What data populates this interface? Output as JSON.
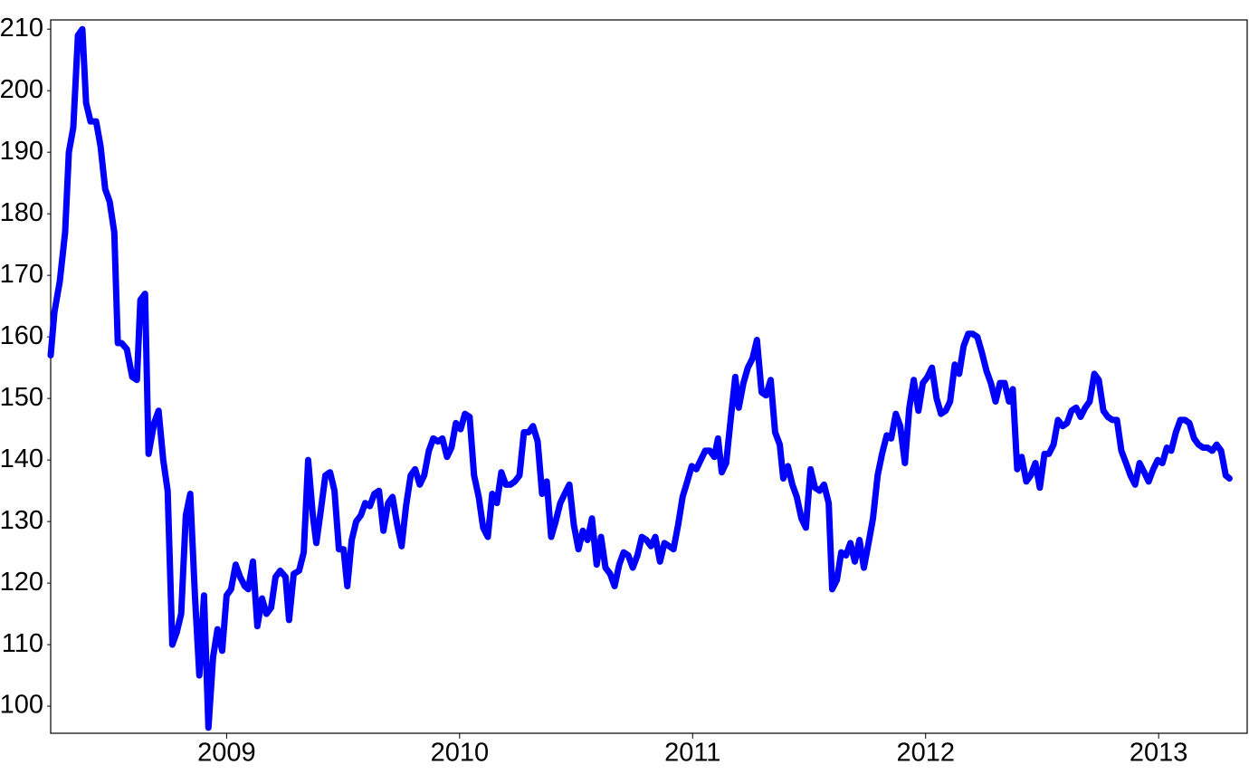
{
  "chart_data": {
    "type": "line",
    "x": [
      2008.245,
      2008.261,
      2008.284,
      2008.307,
      2008.323,
      2008.342,
      2008.362,
      2008.381,
      2008.397,
      2008.416,
      2008.44,
      2008.459,
      2008.479,
      2008.498,
      2008.518,
      2008.533,
      2008.549,
      2008.572,
      2008.595,
      2008.615,
      2008.63,
      2008.65,
      2008.665,
      2008.689,
      2008.708,
      2008.728,
      2008.747,
      2008.767,
      2008.786,
      2008.805,
      2008.825,
      2008.844,
      2008.864,
      2008.883,
      2008.903,
      2008.922,
      2008.942,
      2008.961,
      2008.981,
      2009.0,
      2009.019,
      2009.039,
      2009.058,
      2009.078,
      2009.093,
      2009.113,
      2009.132,
      2009.152,
      2009.171,
      2009.191,
      2009.21,
      2009.23,
      2009.253,
      2009.268,
      2009.288,
      2009.311,
      2009.331,
      2009.35,
      2009.37,
      2009.385,
      2009.405,
      2009.424,
      2009.444,
      2009.463,
      2009.482,
      2009.502,
      2009.518,
      2009.537,
      2009.556,
      2009.576,
      2009.595,
      2009.615,
      2009.634,
      2009.654,
      2009.673,
      2009.693,
      2009.712,
      2009.732,
      2009.751,
      2009.77,
      2009.79,
      2009.809,
      2009.829,
      2009.848,
      2009.868,
      2009.887,
      2009.907,
      2009.926,
      2009.946,
      2009.965,
      2009.984,
      2010.004,
      2010.023,
      2010.043,
      2010.062,
      2010.082,
      2010.101,
      2010.121,
      2010.14,
      2010.16,
      2010.179,
      2010.198,
      2010.218,
      2010.237,
      2010.257,
      2010.276,
      2010.296,
      2010.315,
      2010.335,
      2010.354,
      2010.374,
      2010.393,
      2010.412,
      2010.432,
      2010.451,
      2010.471,
      2010.49,
      2010.51,
      2010.529,
      2010.549,
      2010.568,
      2010.588,
      2010.607,
      2010.626,
      2010.646,
      2010.665,
      2010.685,
      2010.704,
      2010.724,
      2010.743,
      2010.763,
      2010.782,
      2010.802,
      2010.821,
      2010.84,
      2010.86,
      2010.879,
      2010.899,
      2010.918,
      2010.938,
      2010.957,
      2010.977,
      2010.996,
      2011.016,
      2011.035,
      2011.054,
      2011.074,
      2011.093,
      2011.109,
      2011.125,
      2011.144,
      2011.163,
      2011.183,
      2011.198,
      2011.218,
      2011.237,
      2011.257,
      2011.276,
      2011.296,
      2011.315,
      2011.335,
      2011.354,
      2011.374,
      2011.389,
      2011.409,
      2011.428,
      2011.447,
      2011.467,
      2011.486,
      2011.506,
      2011.525,
      2011.545,
      2011.564,
      2011.584,
      2011.599,
      2011.619,
      2011.638,
      2011.658,
      2011.677,
      2011.696,
      2011.716,
      2011.735,
      2011.755,
      2011.774,
      2011.794,
      2011.813,
      2011.833,
      2011.852,
      2011.872,
      2011.891,
      2011.911,
      2011.93,
      2011.949,
      2011.969,
      2011.988,
      2012.008,
      2012.027,
      2012.047,
      2012.066,
      2012.086,
      2012.105,
      2012.125,
      2012.144,
      2012.163,
      2012.183,
      2012.202,
      2012.222,
      2012.241,
      2012.261,
      2012.28,
      2012.3,
      2012.319,
      2012.339,
      2012.358,
      2012.374,
      2012.393,
      2012.412,
      2012.432,
      2012.451,
      2012.471,
      2012.49,
      2012.51,
      2012.529,
      2012.549,
      2012.568,
      2012.588,
      2012.607,
      2012.626,
      2012.646,
      2012.665,
      2012.685,
      2012.704,
      2012.724,
      2012.743,
      2012.763,
      2012.782,
      2012.802,
      2012.821,
      2012.84,
      2012.86,
      2012.879,
      2012.899,
      2012.918,
      2012.938,
      2012.957,
      2012.977,
      2012.996,
      2013.016,
      2013.035,
      2013.054,
      2013.074,
      2013.093,
      2013.113,
      2013.132,
      2013.152,
      2013.171,
      2013.191,
      2013.21,
      2013.23,
      2013.249,
      2013.268,
      2013.288,
      2013.304
    ],
    "series": [
      {
        "color": "#0000ff",
        "values": [
          157,
          164,
          169,
          177,
          190,
          194,
          209,
          210,
          198,
          195,
          195,
          191,
          184,
          182,
          177,
          159,
          159,
          158,
          153.5,
          153,
          166,
          167,
          141,
          146,
          148,
          140,
          135,
          110,
          112,
          115,
          131,
          134.5,
          118,
          105,
          118,
          96.5,
          108,
          112.5,
          109,
          118,
          119,
          123,
          121,
          119.5,
          119,
          123.5,
          113,
          117.5,
          115,
          116,
          121,
          122,
          121,
          114,
          121.5,
          122,
          125,
          140,
          131,
          126.5,
          132,
          137.5,
          138,
          135,
          125.5,
          125.5,
          119.5,
          127,
          130,
          131,
          133,
          132.5,
          134.5,
          135,
          128.5,
          133,
          134,
          129.5,
          126,
          132.5,
          137.5,
          138.5,
          136,
          137.5,
          141.5,
          143.5,
          143,
          143.5,
          140.5,
          142,
          146,
          145,
          147.5,
          147,
          137.5,
          134,
          129,
          127.5,
          134.5,
          133,
          138,
          136,
          136,
          136.5,
          137.5,
          144.5,
          144.5,
          145.5,
          143,
          134.5,
          136.5,
          127.5,
          130,
          133,
          134.5,
          136,
          129.5,
          125.5,
          128.5,
          127,
          130.5,
          123,
          127.5,
          122.5,
          121.5,
          119.5,
          123,
          125,
          124.5,
          122.5,
          124.5,
          127.5,
          127,
          126,
          127.5,
          123.5,
          126.5,
          126,
          125.5,
          129.5,
          134,
          136.5,
          139,
          138.5,
          140,
          141.5,
          141.5,
          140.5,
          143.5,
          138,
          139.5,
          146.5,
          153.5,
          148.5,
          152.5,
          155,
          156.5,
          159.5,
          151,
          150.5,
          153,
          144.5,
          142.5,
          137,
          139,
          136,
          134,
          130.5,
          129,
          138.5,
          135.5,
          135,
          136,
          133,
          119,
          120.5,
          125,
          124.5,
          126.5,
          123.5,
          127,
          122.5,
          126.5,
          130.5,
          137.5,
          141,
          144,
          143.5,
          147.5,
          145.5,
          139.5,
          148.5,
          153,
          148,
          152.5,
          153.5,
          155,
          150,
          147.5,
          148,
          149.5,
          155.5,
          154,
          158.5,
          160.5,
          160.5,
          160,
          157.5,
          154.5,
          152.5,
          149.5,
          152.5,
          152.5,
          149.5,
          151.5,
          138.5,
          140.5,
          136.5,
          137.5,
          139.5,
          135.5,
          141,
          141,
          142.5,
          146.5,
          145.5,
          146,
          148,
          148.5,
          147,
          148.5,
          149.5,
          154,
          153,
          148,
          147,
          146.5,
          146.5,
          141.5,
          139.5,
          137.5,
          136,
          139.5,
          138,
          136.5,
          138.5,
          140,
          139.5,
          142,
          141.5,
          144.5,
          146.5,
          146.5,
          146,
          143.5,
          142.5,
          142,
          142,
          141.5,
          142.5,
          141.5,
          137.5,
          137
        ]
      }
    ],
    "xlim": [
      2008.245,
      2013.38
    ],
    "ylim": [
      95.6,
      211.5
    ],
    "xticks": [
      2009,
      2010,
      2011,
      2012,
      2013
    ],
    "yticks": [
      100,
      110,
      120,
      130,
      140,
      150,
      160,
      170,
      180,
      190,
      200,
      210
    ],
    "grid": false
  }
}
